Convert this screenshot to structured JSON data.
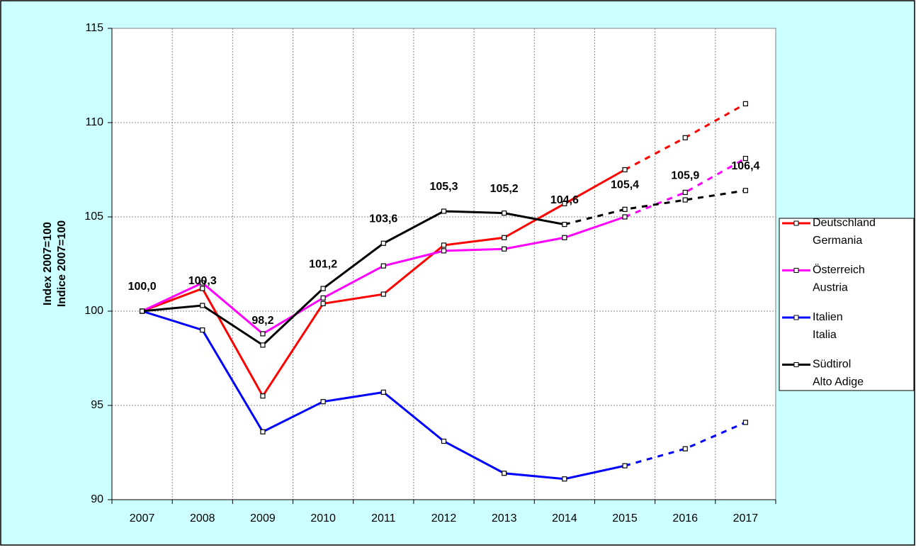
{
  "chart_data": {
    "type": "line",
    "ylabel": [
      "Index 2007=100",
      "Indice 2007=100"
    ],
    "categories": [
      "2007",
      "2008",
      "2009",
      "2010",
      "2011",
      "2012",
      "2013",
      "2014",
      "2015",
      "2016",
      "2017"
    ],
    "ylim": [
      90,
      115
    ],
    "yticks": [
      90,
      95,
      100,
      105,
      110,
      115
    ],
    "grid": true,
    "legend": "right",
    "series": [
      {
        "name": [
          "Deutschland",
          "Germania"
        ],
        "color": "#ff0000",
        "dashed_from": 8,
        "values": [
          100,
          101.2,
          95.5,
          100.4,
          100.9,
          103.5,
          103.9,
          105.7,
          107.5,
          109.2,
          111.0
        ]
      },
      {
        "name": [
          "Österreich",
          "Austria"
        ],
        "color": "#ff00ff",
        "dashed_from": 8,
        "values": [
          100,
          101.5,
          98.8,
          100.7,
          102.4,
          103.2,
          103.3,
          103.9,
          105.0,
          106.3,
          108.1
        ]
      },
      {
        "name": [
          "Italien",
          "Italia"
        ],
        "color": "#0000ff",
        "dashed_from": 8,
        "values": [
          100,
          99.0,
          93.6,
          95.2,
          95.7,
          93.1,
          91.4,
          91.1,
          91.8,
          92.7,
          94.1
        ]
      },
      {
        "name": [
          "Südtirol",
          "Alto Adige"
        ],
        "color": "#000000",
        "dashed_from": 7,
        "values": [
          100.0,
          100.3,
          98.2,
          101.2,
          103.6,
          105.3,
          105.2,
          104.6,
          105.4,
          105.9,
          106.4
        ],
        "value_labels": [
          "100,0",
          "100,3",
          "98,2",
          "101,2",
          "103,6",
          "105,3",
          "105,2",
          "104,6",
          "105,4",
          "105,9",
          "106,4"
        ]
      }
    ]
  }
}
